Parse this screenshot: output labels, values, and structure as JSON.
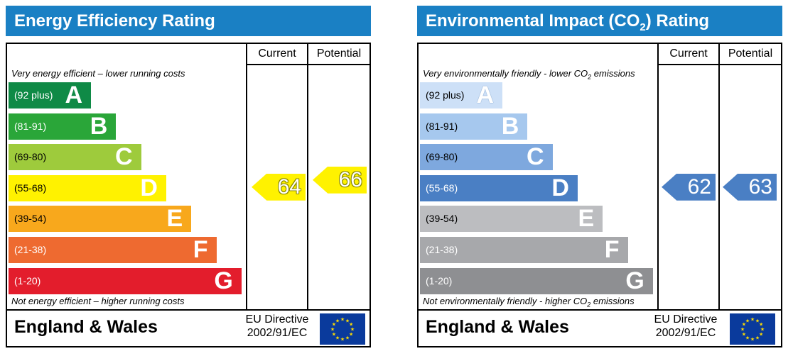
{
  "colors": {
    "title_bar": "#1a80c4",
    "ee_bands": [
      "#0f8a46",
      "#2aa639",
      "#9ecb3c",
      "#fff200",
      "#f8a81c",
      "#ee6a30",
      "#e31d2c"
    ],
    "ei_bands": [
      "#cde0f7",
      "#a6c8ee",
      "#7ea8de",
      "#4a7fc4",
      "#bcbdc0",
      "#a7a8ab",
      "#8e8f92"
    ],
    "ee_current_arrow": "#fff200",
    "ee_potential_arrow": "#fff200",
    "ei_current_arrow": "#4a7fc4",
    "ei_potential_arrow": "#4a7fc4",
    "eu_flag": "#0a3a9c",
    "eu_stars": "#ffdd00"
  },
  "energy_efficiency": {
    "title": "Energy Efficiency Rating",
    "col_current": "Current",
    "col_potential": "Potential",
    "top_note": "Very energy efficient – lower running costs",
    "bottom_note": "Not energy efficient – higher running costs",
    "country": "England & Wales",
    "directive_line1": "EU Directive",
    "directive_line2": "2002/91/EC",
    "flag_icon": "eu-flag-icon"
  },
  "environmental_impact": {
    "title_main": "Environmental Impact (CO",
    "title_sub": "2",
    "title_end": ") Rating",
    "col_current": "Current",
    "col_potential": "Potential",
    "top_note_main": "Very environmentally friendly - lower CO",
    "top_note_sub": "2",
    "top_note_end": " emissions",
    "bottom_note_main": "Not environmentally friendly - higher CO",
    "bottom_note_sub": "2",
    "bottom_note_end": " emissions",
    "country": "England & Wales",
    "directive_line1": "EU Directive",
    "directive_line2": "2002/91/EC",
    "flag_icon": "eu-flag-icon"
  },
  "chart_data": [
    {
      "type": "bar",
      "title": "Energy Efficiency Rating",
      "categories": [
        "A",
        "B",
        "C",
        "D",
        "E",
        "F",
        "G"
      ],
      "ranges": [
        "(92 plus)",
        "(81-91)",
        "(69-80)",
        "(55-68)",
        "(39-54)",
        "(21-38)",
        "(1-20)"
      ],
      "current": 64,
      "potential": 66
    },
    {
      "type": "bar",
      "title": "Environmental Impact (CO2) Rating",
      "categories": [
        "A",
        "B",
        "C",
        "D",
        "E",
        "F",
        "G"
      ],
      "ranges": [
        "(92 plus)",
        "(81-91)",
        "(69-80)",
        "(55-68)",
        "(39-54)",
        "(21-38)",
        "(1-20)"
      ],
      "current": 62,
      "potential": 63
    }
  ]
}
